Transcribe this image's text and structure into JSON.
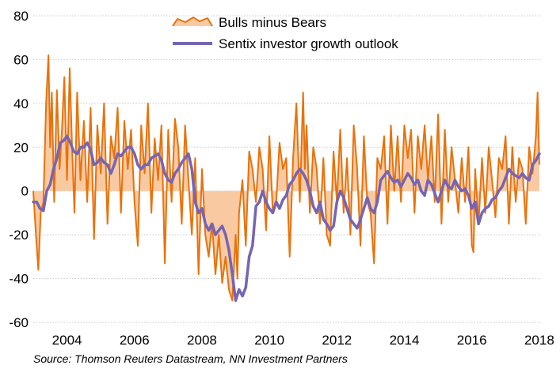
{
  "chart_data": {
    "type": "line",
    "title": "",
    "xlabel": "",
    "ylabel": "",
    "xlim": [
      2003.0,
      2018.05
    ],
    "ylim": [
      -60,
      80
    ],
    "y_ticks": [
      "-60",
      "-40",
      "-20",
      "0",
      "20",
      "40",
      "60",
      "80"
    ],
    "x_ticks": [
      "2004",
      "2006",
      "2008",
      "2010",
      "2012",
      "2014",
      "2016",
      "2018"
    ],
    "grid": "horizontal dotted",
    "legend": {
      "placement": "top-center",
      "entries": [
        "Bulls minus Bears",
        "Sentix investor growth outlook"
      ]
    },
    "series": [
      {
        "name": "Bulls minus Bears",
        "style": "area",
        "color": "#e8720c",
        "fill": "#f9c9a2",
        "x": [
          2003.0,
          2003.08,
          2003.15,
          2003.22,
          2003.3,
          2003.38,
          2003.45,
          2003.5,
          2003.55,
          2003.62,
          2003.7,
          2003.78,
          2003.85,
          2003.92,
          2004.0,
          2004.08,
          2004.15,
          2004.22,
          2004.3,
          2004.4,
          2004.5,
          2004.6,
          2004.7,
          2004.8,
          2004.9,
          2005.0,
          2005.1,
          2005.2,
          2005.3,
          2005.4,
          2005.5,
          2005.6,
          2005.7,
          2005.8,
          2005.9,
          2006.0,
          2006.1,
          2006.2,
          2006.3,
          2006.4,
          2006.5,
          2006.6,
          2006.7,
          2006.8,
          2006.9,
          2007.0,
          2007.1,
          2007.2,
          2007.3,
          2007.4,
          2007.5,
          2007.6,
          2007.7,
          2007.8,
          2007.9,
          2008.0,
          2008.1,
          2008.2,
          2008.3,
          2008.4,
          2008.5,
          2008.6,
          2008.7,
          2008.8,
          2008.9,
          2009.0,
          2009.05,
          2009.1,
          2009.2,
          2009.3,
          2009.4,
          2009.5,
          2009.6,
          2009.7,
          2009.8,
          2009.9,
          2010.0,
          2010.1,
          2010.2,
          2010.3,
          2010.4,
          2010.5,
          2010.6,
          2010.7,
          2010.8,
          2010.9,
          2011.0,
          2011.05,
          2011.1,
          2011.2,
          2011.3,
          2011.4,
          2011.5,
          2011.6,
          2011.7,
          2011.8,
          2011.9,
          2012.0,
          2012.1,
          2012.2,
          2012.3,
          2012.4,
          2012.5,
          2012.6,
          2012.7,
          2012.8,
          2012.9,
          2013.0,
          2013.1,
          2013.2,
          2013.3,
          2013.4,
          2013.5,
          2013.6,
          2013.7,
          2013.8,
          2013.9,
          2014.0,
          2014.1,
          2014.2,
          2014.3,
          2014.4,
          2014.5,
          2014.6,
          2014.7,
          2014.8,
          2014.9,
          2015.0,
          2015.1,
          2015.2,
          2015.3,
          2015.4,
          2015.5,
          2015.6,
          2015.7,
          2015.8,
          2015.9,
          2016.0,
          2016.05,
          2016.1,
          2016.2,
          2016.3,
          2016.4,
          2016.5,
          2016.6,
          2016.7,
          2016.8,
          2016.9,
          2017.0,
          2017.1,
          2017.2,
          2017.3,
          2017.4,
          2017.5,
          2017.6,
          2017.7,
          2017.8,
          2017.9,
          2017.95,
          2018.0
        ],
        "values": [
          0,
          -20,
          -36,
          -10,
          -5,
          40,
          62,
          20,
          45,
          -5,
          46,
          10,
          28,
          52,
          5,
          56,
          20,
          -10,
          45,
          5,
          32,
          -5,
          38,
          -22,
          30,
          8,
          40,
          -15,
          25,
          15,
          38,
          -10,
          32,
          10,
          28,
          -5,
          -25,
          30,
          8,
          40,
          -10,
          24,
          5,
          30,
          -33,
          28,
          -5,
          33,
          20,
          -15,
          30,
          5,
          -20,
          15,
          -38,
          10,
          -20,
          -30,
          -15,
          -38,
          -20,
          -42,
          -30,
          -45,
          -50,
          -20,
          -40,
          -10,
          5,
          -25,
          18,
          10,
          -5,
          20,
          10,
          -18,
          25,
          -10,
          -5,
          22,
          10,
          15,
          -30,
          15,
          40,
          -5,
          45,
          10,
          30,
          -10,
          20,
          10,
          -15,
          15,
          -20,
          -25,
          18,
          -5,
          28,
          -10,
          15,
          -20,
          30,
          10,
          -25,
          25,
          -5,
          -10,
          -33,
          15,
          10,
          25,
          -15,
          30,
          0,
          25,
          -5,
          30,
          15,
          28,
          -10,
          25,
          10,
          30,
          5,
          25,
          -5,
          35,
          -15,
          28,
          -5,
          20,
          5,
          -10,
          15,
          -5,
          20,
          -25,
          -28,
          10,
          -15,
          15,
          -10,
          20,
          5,
          -12,
          15,
          10,
          25,
          -15,
          20,
          -5,
          15,
          10,
          -15,
          20,
          8,
          25,
          45,
          12
        ]
      },
      {
        "name": "Sentix investor growth outlook",
        "style": "line",
        "color": "#7565b3",
        "x": [
          2003.0,
          2003.1,
          2003.2,
          2003.3,
          2003.4,
          2003.5,
          2003.6,
          2003.7,
          2003.8,
          2003.9,
          2004.0,
          2004.1,
          2004.2,
          2004.3,
          2004.4,
          2004.5,
          2004.6,
          2004.7,
          2004.8,
          2004.9,
          2005.0,
          2005.1,
          2005.2,
          2005.3,
          2005.4,
          2005.5,
          2005.6,
          2005.7,
          2005.8,
          2005.9,
          2006.0,
          2006.1,
          2006.2,
          2006.3,
          2006.4,
          2006.5,
          2006.6,
          2006.7,
          2006.8,
          2006.9,
          2007.0,
          2007.1,
          2007.2,
          2007.3,
          2007.4,
          2007.5,
          2007.6,
          2007.7,
          2007.8,
          2007.9,
          2008.0,
          2008.1,
          2008.2,
          2008.3,
          2008.4,
          2008.5,
          2008.6,
          2008.7,
          2008.8,
          2008.9,
          2009.0,
          2009.1,
          2009.2,
          2009.3,
          2009.4,
          2009.5,
          2009.6,
          2009.7,
          2009.8,
          2009.9,
          2010.0,
          2010.1,
          2010.2,
          2010.3,
          2010.4,
          2010.5,
          2010.6,
          2010.7,
          2010.8,
          2010.9,
          2011.0,
          2011.1,
          2011.2,
          2011.3,
          2011.4,
          2011.5,
          2011.6,
          2011.7,
          2011.8,
          2011.9,
          2012.0,
          2012.1,
          2012.2,
          2012.3,
          2012.4,
          2012.5,
          2012.6,
          2012.7,
          2012.8,
          2012.9,
          2013.0,
          2013.1,
          2013.2,
          2013.3,
          2013.4,
          2013.5,
          2013.6,
          2013.7,
          2013.8,
          2013.9,
          2014.0,
          2014.1,
          2014.2,
          2014.3,
          2014.4,
          2014.5,
          2014.6,
          2014.7,
          2014.8,
          2014.9,
          2015.0,
          2015.1,
          2015.2,
          2015.3,
          2015.4,
          2015.5,
          2015.6,
          2015.7,
          2015.8,
          2015.9,
          2016.0,
          2016.1,
          2016.2,
          2016.3,
          2016.4,
          2016.5,
          2016.6,
          2016.7,
          2016.8,
          2016.9,
          2017.0,
          2017.1,
          2017.2,
          2017.3,
          2017.4,
          2017.5,
          2017.6,
          2017.7,
          2017.8,
          2017.9,
          2018.0
        ],
        "values": [
          -5,
          -5,
          -8,
          -9,
          0,
          3,
          10,
          15,
          22,
          23,
          25,
          22,
          18,
          17,
          20,
          20,
          22,
          19,
          12,
          13,
          15,
          13,
          12,
          8,
          12,
          17,
          16,
          18,
          20,
          20,
          17,
          12,
          10,
          12,
          12,
          15,
          16,
          17,
          14,
          8,
          5,
          4,
          8,
          10,
          13,
          15,
          17,
          10,
          -5,
          -10,
          -8,
          -15,
          -18,
          -15,
          -20,
          -18,
          -16,
          -20,
          -27,
          -38,
          -50,
          -45,
          -48,
          -44,
          -30,
          -25,
          -7,
          -5,
          0,
          -5,
          -8,
          -10,
          -5,
          -8,
          -4,
          -2,
          3,
          5,
          8,
          10,
          8,
          5,
          0,
          -7,
          -10,
          -5,
          -13,
          -15,
          -18,
          -16,
          -5,
          0,
          -3,
          -8,
          -13,
          -15,
          -17,
          -13,
          -8,
          -3,
          -8,
          -10,
          -5,
          5,
          7,
          9,
          6,
          4,
          5,
          2,
          5,
          8,
          6,
          3,
          5,
          0,
          -2,
          5,
          3,
          -1,
          -5,
          0,
          5,
          2,
          1,
          5,
          2,
          0,
          1,
          -2,
          -8,
          -5,
          -15,
          -10,
          -8,
          -7,
          -4,
          -3,
          0,
          2,
          6,
          10,
          8,
          7,
          6,
          8,
          6,
          5,
          12,
          14,
          17
        ]
      }
    ]
  },
  "legend": {
    "entry1": "Bulls minus Bears",
    "entry2": "Sentix investor growth outlook"
  },
  "source": "Source: Thomson Reuters Datastream, NN Investment Partners"
}
